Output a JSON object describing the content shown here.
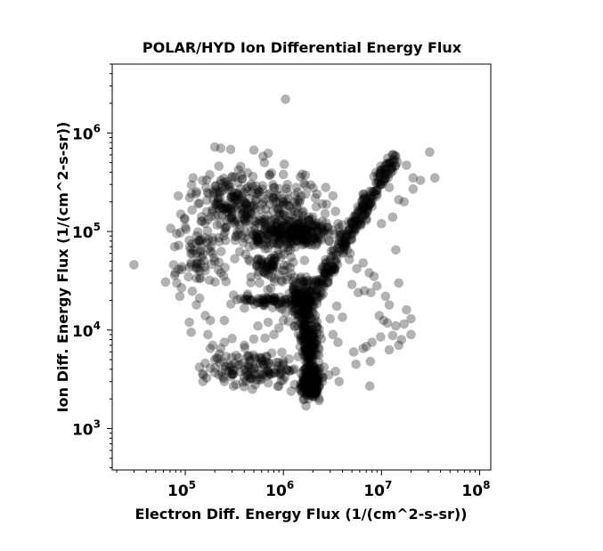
{
  "chart_data": {
    "type": "scatter",
    "title": "POLAR/HYD  Ion Differential Energy Flux",
    "xlabel": "Electron Diff. Energy Flux (1/(cm^2-s-sr))",
    "ylabel": "Ion Diff. Energy Flux (1/(cm^2-s-sr))",
    "xscale": "log",
    "yscale": "log",
    "xlim": [
      18000,
      130000000
    ],
    "ylim": [
      380,
      5000000
    ],
    "x_ticks": [
      {
        "base": "10",
        "exp": "5"
      },
      {
        "base": "10",
        "exp": "6"
      },
      {
        "base": "10",
        "exp": "7"
      },
      {
        "base": "10",
        "exp": "8"
      }
    ],
    "x_tick_values": [
      100000,
      1000000,
      10000000,
      100000000
    ],
    "y_ticks": [
      {
        "base": "10",
        "exp": "3"
      },
      {
        "base": "10",
        "exp": "4"
      },
      {
        "base": "10",
        "exp": "5"
      },
      {
        "base": "10",
        "exp": "6"
      }
    ],
    "y_tick_values": [
      1000,
      10000,
      100000,
      1000000
    ],
    "marker_color": "#000000",
    "marker_opacity": 0.3,
    "grid": false,
    "points": [
      [
        30000,
        46000
      ],
      [
        1050000,
        2200000
      ],
      [
        200000,
        720000
      ],
      [
        230000,
        700000
      ],
      [
        290000,
        680000
      ],
      [
        500000,
        670000
      ],
      [
        700000,
        620000
      ],
      [
        620000,
        580000
      ],
      [
        220000,
        460000
      ],
      [
        1000000,
        380000
      ],
      [
        1100000,
        300000
      ],
      [
        120000,
        350000
      ],
      [
        150000,
        330000
      ],
      [
        85000,
        230000
      ],
      [
        90000,
        150000
      ],
      [
        82000,
        95000
      ],
      [
        78000,
        70000
      ],
      [
        76000,
        46000
      ],
      [
        78000,
        36000
      ],
      [
        82000,
        30000
      ],
      [
        88000,
        22000
      ],
      [
        130000,
        18000
      ],
      [
        110000,
        12000
      ],
      [
        115000,
        9500
      ],
      [
        140000,
        21000
      ],
      [
        160000,
        14000
      ],
      [
        180000,
        12500
      ],
      [
        170000,
        9000
      ],
      [
        190000,
        7000
      ],
      [
        250000,
        12500
      ],
      [
        200000,
        50000
      ],
      [
        230000,
        38000
      ],
      [
        160000,
        40000
      ],
      [
        130000,
        60000
      ],
      [
        260000,
        31000
      ],
      [
        2700000,
        280000
      ],
      [
        3200000,
        230000
      ],
      [
        3400000,
        160000
      ],
      [
        3600000,
        120000
      ],
      [
        4200000,
        70000
      ],
      [
        4800000,
        60000
      ],
      [
        4700000,
        52000
      ],
      [
        5600000,
        42000
      ],
      [
        6500000,
        48000
      ],
      [
        7500000,
        38000
      ],
      [
        8400000,
        35000
      ],
      [
        5000000,
        29000
      ],
      [
        5800000,
        24000
      ],
      [
        6700000,
        25000
      ],
      [
        7800000,
        24000
      ],
      [
        9000000,
        28000
      ],
      [
        11000000,
        22000
      ],
      [
        15000000,
        30000
      ],
      [
        12000000,
        18000
      ],
      [
        18000000,
        16000
      ],
      [
        9500000,
        14000
      ],
      [
        10500000,
        12500
      ],
      [
        11500000,
        11800
      ],
      [
        14000000,
        11000
      ],
      [
        17000000,
        11500
      ],
      [
        20000000,
        9000
      ],
      [
        20000000,
        13000
      ],
      [
        16000000,
        8000
      ],
      [
        13000000,
        8800
      ],
      [
        9800000,
        8500
      ],
      [
        8000000,
        7500
      ],
      [
        7000000,
        6800
      ],
      [
        6500000,
        6500
      ],
      [
        12000000,
        6300
      ],
      [
        15000000,
        7000
      ],
      [
        7700000,
        4800
      ],
      [
        7600000,
        2700
      ],
      [
        5200000,
        6000
      ],
      [
        5500000,
        4500
      ],
      [
        3600000,
        7500
      ],
      [
        3200000,
        9000
      ],
      [
        4000000,
        13500
      ],
      [
        3500000,
        17500
      ],
      [
        3000000,
        13000
      ],
      [
        13000000,
        600000
      ],
      [
        14000000,
        580000
      ],
      [
        18000000,
        470000
      ],
      [
        21000000,
        350000
      ],
      [
        25000000,
        330000
      ],
      [
        31000000,
        640000
      ],
      [
        35000000,
        350000
      ],
      [
        21000000,
        270000
      ],
      [
        12000000,
        280000
      ],
      [
        9000000,
        240000
      ],
      [
        15000000,
        210000
      ],
      [
        17000000,
        200000
      ],
      [
        13000000,
        140000
      ],
      [
        10000000,
        120000
      ],
      [
        14000000,
        65000
      ],
      [
        7000000,
        130000
      ],
      [
        6500000,
        170000
      ],
      [
        1400000,
        210000
      ],
      [
        1600000,
        160000
      ],
      [
        1800000,
        130000
      ],
      [
        1100000,
        250000
      ],
      [
        1000000,
        200000
      ],
      [
        800000,
        280000
      ],
      [
        850000,
        230000
      ],
      [
        1400000,
        250000
      ],
      [
        1350000,
        280000
      ],
      [
        2200000,
        240000
      ],
      [
        2500000,
        190000
      ],
      [
        400000,
        200000
      ],
      [
        380000,
        150000
      ],
      [
        300000,
        130000
      ],
      [
        260000,
        110000
      ],
      [
        330000,
        90000
      ],
      [
        450000,
        70000
      ],
      [
        600000,
        50000
      ],
      [
        280000,
        300000
      ],
      [
        1700000,
        1700
      ],
      [
        1800000,
        2000
      ],
      [
        1650000,
        2300
      ],
      [
        1500000,
        2600
      ],
      [
        1300000,
        2800
      ],
      [
        1200000,
        2400
      ],
      [
        900000,
        2700
      ],
      [
        700000,
        2900
      ],
      [
        600000,
        3200
      ],
      [
        500000,
        3500
      ],
      [
        400000,
        3300
      ],
      [
        330000,
        2800
      ],
      [
        310000,
        2700
      ],
      [
        250000,
        3000
      ],
      [
        220000,
        3500
      ],
      [
        200000,
        3700
      ],
      [
        180000,
        4100
      ],
      [
        150000,
        3600
      ],
      [
        140000,
        4200
      ],
      [
        160000,
        4600
      ],
      [
        200000,
        5000
      ],
      [
        260000,
        5400
      ],
      [
        230000,
        6500
      ],
      [
        180000,
        6500
      ],
      [
        250000,
        7500
      ],
      [
        300000,
        8200
      ],
      [
        400000,
        7000
      ],
      [
        500000,
        8100
      ],
      [
        650000,
        8300
      ],
      [
        800000,
        9000
      ],
      [
        900000,
        10500
      ],
      [
        700000,
        12000
      ],
      [
        550000,
        11000
      ],
      [
        1000000,
        12500
      ],
      [
        1300000,
        11000
      ],
      [
        2000000,
        5500
      ],
      [
        2600000,
        4200
      ],
      [
        2900000,
        3500
      ],
      [
        2500000,
        3000
      ],
      [
        3400000,
        3800
      ],
      [
        3700000,
        3000
      ],
      [
        2300000,
        2600
      ]
    ]
  }
}
